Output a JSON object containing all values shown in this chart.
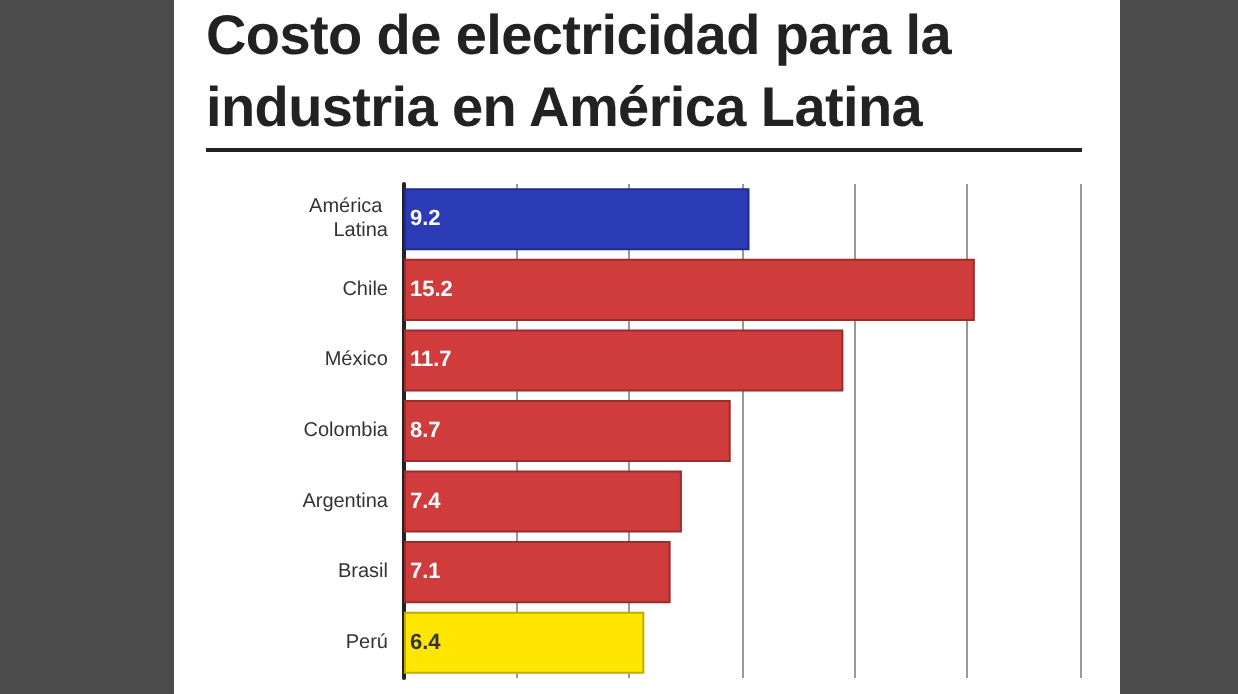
{
  "chart_data": {
    "type": "bar",
    "orientation": "horizontal",
    "title": "Costo de electricidad para la industria en América Latina",
    "categories": [
      "América Latina",
      "Chile",
      "México",
      "Colombia",
      "Argentina",
      "Brasil",
      "Perú"
    ],
    "values": [
      9.2,
      15.2,
      11.7,
      8.7,
      7.4,
      7.1,
      6.4
    ],
    "colors": [
      "#2b3bb5",
      "#d03b3b",
      "#d03b3b",
      "#d03b3b",
      "#d03b3b",
      "#d03b3b",
      "#ffe600"
    ],
    "tick_labels": "y",
    "grid": "x",
    "data_labels": true
  }
}
